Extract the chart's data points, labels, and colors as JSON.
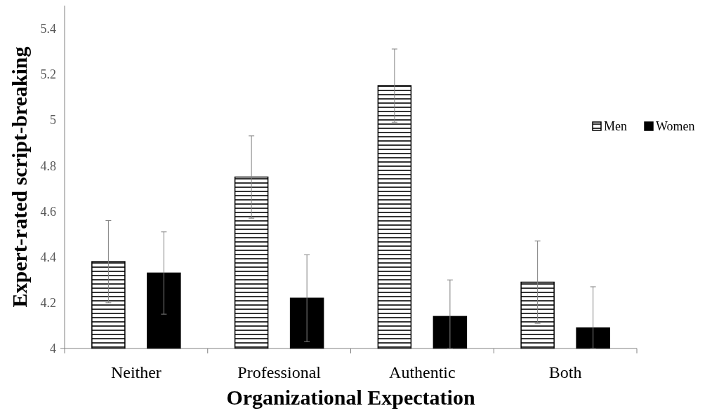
{
  "chart_data": {
    "type": "bar",
    "xlabel": "Organizational Expectation",
    "ylabel": "Expert-rated script-breaking",
    "categories": [
      "Neither",
      "Professional",
      "Authentic",
      "Both"
    ],
    "series": [
      {
        "name": "Men",
        "color": "#000000",
        "values": [
          4.38,
          4.75,
          5.15,
          4.29
        ],
        "errors": [
          0.18,
          0.18,
          0.16,
          0.18
        ]
      },
      {
        "name": "Women",
        "color": "#000000",
        "values": [
          4.33,
          4.22,
          4.14,
          4.09
        ],
        "errors": [
          0.18,
          0.19,
          [
            4,
            4.3
          ],
          [
            4,
            4.27
          ]
        ]
      }
    ],
    "ylim": [
      4,
      5.5
    ],
    "yticks": [
      4,
      4.2,
      4.4,
      4.6,
      4.8,
      5,
      5.2,
      5.4
    ],
    "legend": "right"
  }
}
